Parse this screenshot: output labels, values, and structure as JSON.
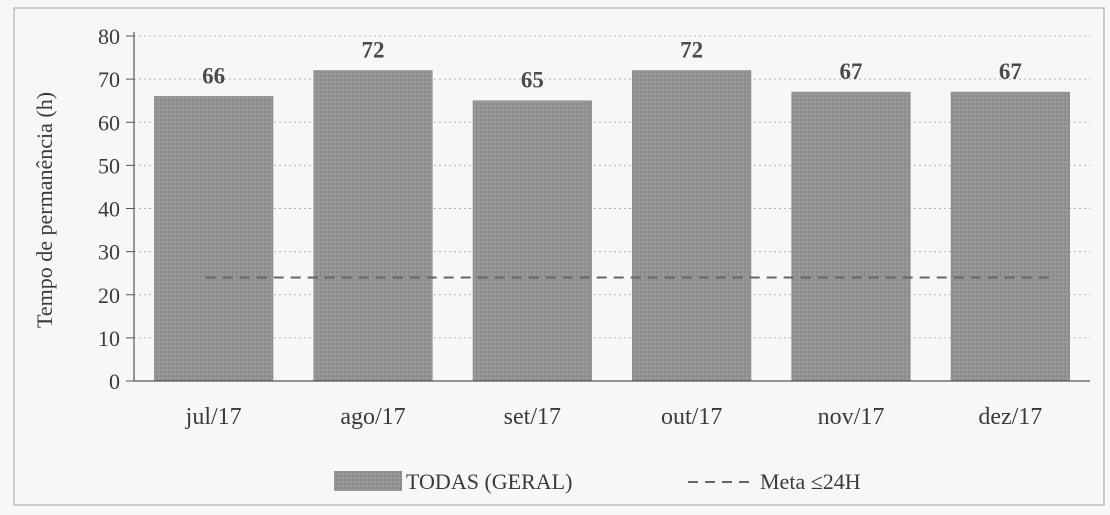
{
  "chart_data": {
    "type": "bar",
    "categories": [
      "jul/17",
      "ago/17",
      "set/17",
      "out/17",
      "nov/17",
      "dez/17"
    ],
    "series": [
      {
        "name": "TODAS (GERAL)",
        "values": [
          66,
          72,
          65,
          72,
          67,
          67
        ]
      }
    ],
    "data_labels": [
      "66",
      "72",
      "65",
      "72",
      "67",
      "67"
    ],
    "reference_line": {
      "name": "Meta ≤24H",
      "value": 24,
      "style": "dashed"
    },
    "ylabel": "Tempo de permanência (h)",
    "xlabel": "",
    "ylim": [
      0,
      80
    ],
    "yticks": [
      0,
      10,
      20,
      30,
      40,
      50,
      60,
      70,
      80
    ],
    "grid": "horizontal dotted",
    "legend_position": "bottom-center",
    "colors": {
      "bar": "#8f8f8f",
      "meta_line": "#666666",
      "frame": "#9a9a9a",
      "background": "#f7f7f5"
    }
  }
}
